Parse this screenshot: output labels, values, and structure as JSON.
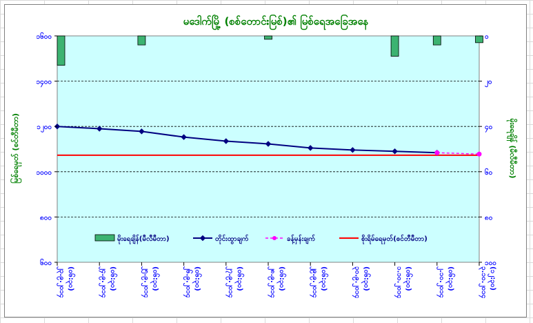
{
  "chart_data": {
    "type": "bar+line",
    "title": "မဒေါက်မြို့ (စစ်တောင်းမြစ်)၏ မြစ်ရေအခြေအနေ",
    "ylabel_left": "မြစ်ရေမှတ် (စင်တီမီတာ)",
    "ylabel_right": "မိုးရေချိန် (မီလီမီတာ)",
    "left_axis": {
      "min": 600,
      "max": 1600,
      "ticks": [
        600,
        800,
        1000,
        1200,
        1400,
        1600
      ],
      "tick_labels": [
        "၆၀၀",
        "၈၀၀",
        "၁၀၀၀",
        "၁၂၀၀",
        "၁၄၀၀",
        "၁၆၀၀"
      ]
    },
    "right_axis": {
      "min": 0,
      "max": 100,
      "reversed": true,
      "ticks": [
        0,
        20,
        40,
        60,
        80,
        100
      ],
      "tick_labels": [
        "၀",
        "၂၀",
        "၄၀",
        "၆၀",
        "၈၀",
        "၁၀၀"
      ]
    },
    "categories": [
      "၂၃.၉.၂၀၁၄ (၀၆:၃၀)",
      "၂၄.၉.၂၀၁၄ (၀၆:၃၀)",
      "၂၅.၉.၂၀၁၄ (၀၆:၃၀)",
      "၂၆.၉.၂၀၁၄ (၀၆:၃၀)",
      "၂၇.၉.၂၀၁၄ (၀၆:၃၀)",
      "၂၈.၉.၂၀၁၄ (၀၆:၃၀)",
      "၂၉.၉.၂၀၁၄ (၀၆:၃၀)",
      "၃၀.၉.၂၀၁၄ (၀၆:၃၀)",
      "၁.၁၀.၂၀၁၄ (၀၆:၃၀)",
      "၂.၁၀.၂၀၁၄ (၀၆:၃၀)",
      "၃.၁၀.၂၀၁၄ (၁၂:၃၀)"
    ],
    "series": [
      {
        "name": "မိုးရေချိန်(မီလီမီတာ)",
        "type": "bar",
        "axis": "right",
        "color": "#3cb371",
        "values": [
          13,
          0,
          4,
          0,
          0,
          1.5,
          0,
          0,
          9,
          4,
          3
        ]
      },
      {
        "name": "တိုင်းထွာချက်",
        "type": "line",
        "axis": "left",
        "color": "#000080",
        "values": [
          1200,
          1190,
          1178,
          1153,
          1135,
          1123,
          1105,
          1096,
          1090,
          1084,
          null
        ]
      },
      {
        "name": "ခန့်မှန်းချက်",
        "type": "line-dashed",
        "axis": "left",
        "color": "#ff00ff",
        "values": [
          null,
          null,
          null,
          null,
          null,
          null,
          null,
          null,
          null,
          1084,
          1078
        ]
      },
      {
        "name": "စိုးရိမ်ရေမှတ်(စင်တီမီတာ)",
        "type": "hline",
        "axis": "left",
        "color": "#ff0000",
        "value": 1073
      }
    ],
    "legend_position": "bottom-inside",
    "grid": true,
    "plot_background": "#ccffff"
  }
}
